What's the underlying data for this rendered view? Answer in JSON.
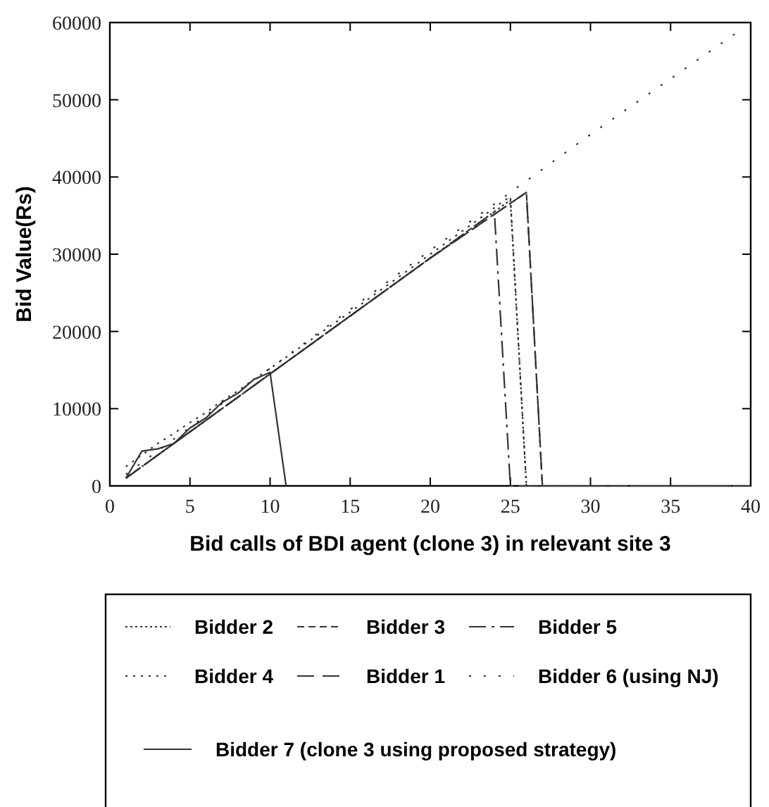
{
  "chart_data": {
    "type": "line",
    "xlabel": "Bid calls of BDI agent (clone 3) in relevant site 3",
    "ylabel": "Bid Value(Rs)",
    "xlim": [
      0,
      40
    ],
    "ylim": [
      0,
      60000
    ],
    "xticks": [
      0,
      5,
      10,
      15,
      20,
      25,
      30,
      35,
      40
    ],
    "yticks": [
      0,
      10000,
      20000,
      30000,
      40000,
      50000,
      60000
    ],
    "grid": false,
    "legend": "bottom",
    "marker": "none",
    "series": [
      {
        "name": "Bidder 2",
        "color": "#333333",
        "line_style": "dotted",
        "x": [
          1,
          5,
          10,
          15,
          20,
          25,
          26,
          40
        ],
        "values": [
          1000,
          7000,
          14500,
          22000,
          29500,
          37000,
          0,
          0
        ]
      },
      {
        "name": "Bidder 3",
        "color": "#333333",
        "line_style": "dashed",
        "x": [
          1,
          5,
          10,
          15,
          20,
          26,
          27,
          40
        ],
        "values": [
          1000,
          7000,
          14500,
          22000,
          29500,
          38000,
          0,
          0
        ]
      },
      {
        "name": "Bidder  5",
        "color": "#333333",
        "line_style": "dashed",
        "x": [
          1,
          5,
          10,
          15,
          20,
          24,
          25,
          40
        ],
        "values": [
          1000,
          7000,
          14500,
          22000,
          29500,
          35500,
          0,
          0
        ]
      },
      {
        "name": "Bidder 4",
        "color": "#333333",
        "line_style": "dotted",
        "x": [
          1,
          2,
          3,
          4,
          5,
          6,
          7,
          8,
          9,
          10,
          15,
          20,
          25,
          26,
          40
        ],
        "values": [
          2500,
          4000,
          5500,
          6800,
          8200,
          9500,
          11000,
          12300,
          13800,
          15200,
          22500,
          30000,
          37500,
          0,
          0
        ]
      },
      {
        "name": "Bidder 1",
        "color": "#333333",
        "line_style": "dashed",
        "x": [
          1,
          5,
          10,
          15,
          20,
          26,
          27,
          40
        ],
        "values": [
          1000,
          7000,
          14500,
          22000,
          29500,
          38000,
          0,
          0
        ]
      },
      {
        "name": "Bidder  6 (using NJ)",
        "color": "#333333",
        "line_style": "dotted",
        "x": [
          1,
          10,
          20,
          30,
          39
        ],
        "values": [
          1500,
          15200,
          30500,
          45500,
          58500
        ]
      },
      {
        "name": "Bidder 7 (clone 3 using proposed strategy)",
        "color": "#333333",
        "line_style": "solid",
        "x": [
          1,
          2,
          3,
          4,
          5,
          6,
          7,
          8,
          9,
          10,
          11
        ],
        "values": [
          1000,
          4500,
          4800,
          5500,
          7500,
          8800,
          10800,
          12000,
          13800,
          14700,
          0
        ]
      }
    ]
  }
}
